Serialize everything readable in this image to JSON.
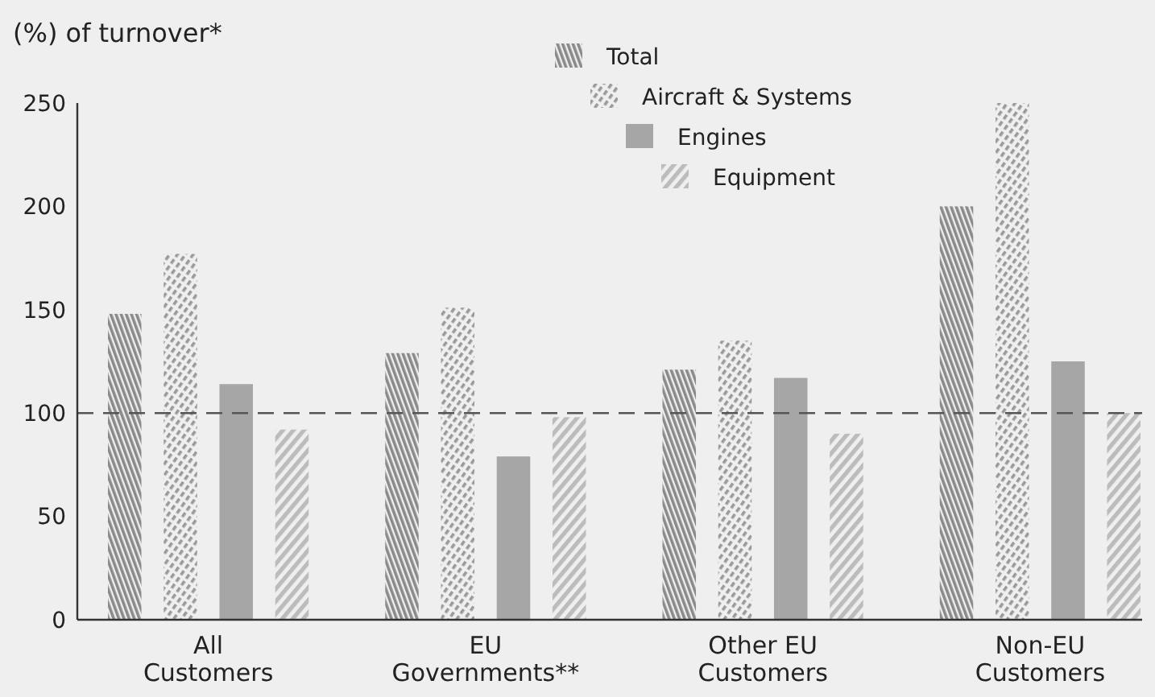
{
  "chart_data": {
    "type": "bar",
    "ylabel": "(%) of turnover*",
    "categories": [
      "All Customers",
      "EU Governments**",
      "Other EU Customers",
      "Non-EU Customers"
    ],
    "series": [
      {
        "name": "Total",
        "color": "#8a8a8a",
        "values": [
          148,
          129,
          121,
          200
        ]
      },
      {
        "name": "Aircraft & Systems",
        "color": "#9a9a9a",
        "values": [
          177,
          151,
          135,
          250
        ]
      },
      {
        "name": "Engines",
        "color": "#a6a6a6",
        "values": [
          114,
          79,
          117,
          125
        ]
      },
      {
        "name": "Equipment",
        "color": "#bcbcbc",
        "values": [
          92,
          98,
          90,
          100
        ]
      }
    ],
    "ylim": [
      0,
      250
    ],
    "yticks": [
      0,
      50,
      100,
      150,
      200,
      250
    ],
    "ref_lines": [
      {
        "axis": "y",
        "value": 100,
        "color": "#555555",
        "line_style": "dashed"
      }
    ],
    "legend": "top"
  }
}
